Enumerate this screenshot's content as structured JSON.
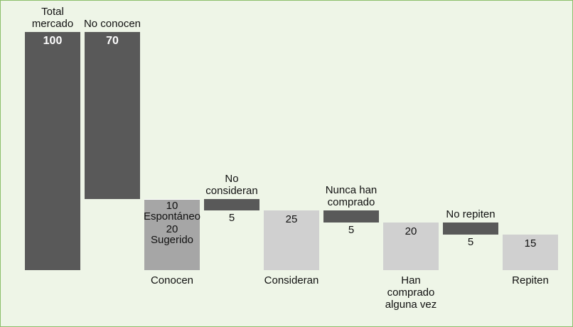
{
  "chart_data": {
    "type": "waterfall",
    "ylim": [
      0,
      100
    ],
    "steps": [
      {
        "name": "Total mercado",
        "kind": "total",
        "value": 100,
        "color": "#595959"
      },
      {
        "name": "No conocen",
        "kind": "decrease",
        "value": 70,
        "color": "#595959"
      },
      {
        "name": "Conocen",
        "kind": "subtotal",
        "color": "#a6a6a6",
        "segments": [
          {
            "name": "Sugerido",
            "value": 20
          },
          {
            "name": "Espontáneo",
            "value": 10
          }
        ]
      },
      {
        "name": "No consideran",
        "kind": "decrease",
        "value": 5,
        "color": "#595959"
      },
      {
        "name": "Consideran",
        "kind": "subtotal",
        "value": 25,
        "color": "#d0d0d0"
      },
      {
        "name": "Nunca han comprado",
        "kind": "decrease",
        "value": 5,
        "color": "#595959"
      },
      {
        "name": "Han comprado alguna vez",
        "kind": "subtotal",
        "value": 20,
        "color": "#d0d0d0"
      },
      {
        "name": "No repiten",
        "kind": "decrease",
        "value": 5,
        "color": "#595959"
      },
      {
        "name": "Repiten",
        "kind": "subtotal",
        "value": 15,
        "color": "#d0d0d0"
      }
    ]
  }
}
